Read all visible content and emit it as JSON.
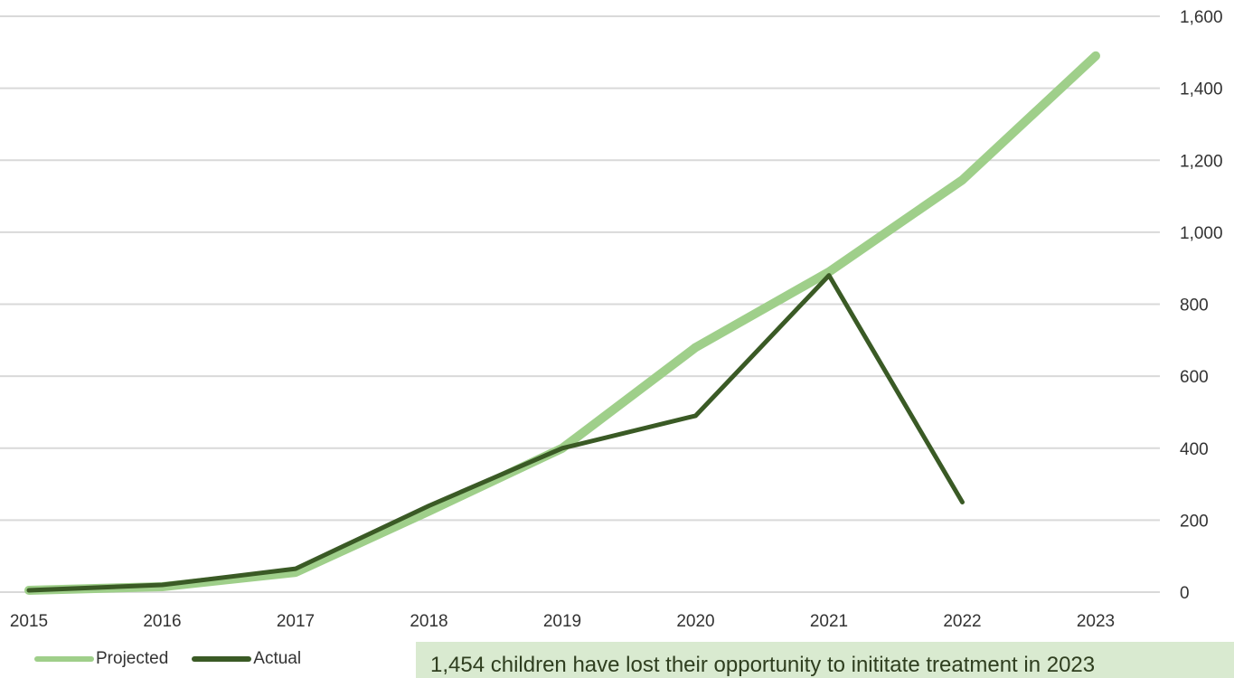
{
  "chart_data": {
    "type": "line",
    "categories": [
      "2015",
      "2016",
      "2017",
      "2018",
      "2019",
      "2020",
      "2021",
      "2022",
      "2023"
    ],
    "series": [
      {
        "name": "Projected",
        "color": "#9fcf8a",
        "values": [
          5,
          15,
          55,
          225,
          400,
          680,
          890,
          1145,
          1490
        ]
      },
      {
        "name": "Actual",
        "color": "#3a5a25",
        "values": [
          5,
          20,
          65,
          240,
          400,
          490,
          880,
          250,
          null
        ]
      }
    ],
    "ylim": [
      0,
      1600
    ],
    "yticks": [
      "0",
      "200",
      "400",
      "600",
      "800",
      "1,000",
      "1,200",
      "1,400",
      "1,600"
    ],
    "ytick_values": [
      0,
      200,
      400,
      600,
      800,
      1000,
      1200,
      1400,
      1600
    ],
    "y_axis_side": "right",
    "grid": true,
    "legend_position": "bottom-left"
  },
  "callout": {
    "text": "1,454 children have lost their opportunity to inititate treatment in 2023"
  }
}
